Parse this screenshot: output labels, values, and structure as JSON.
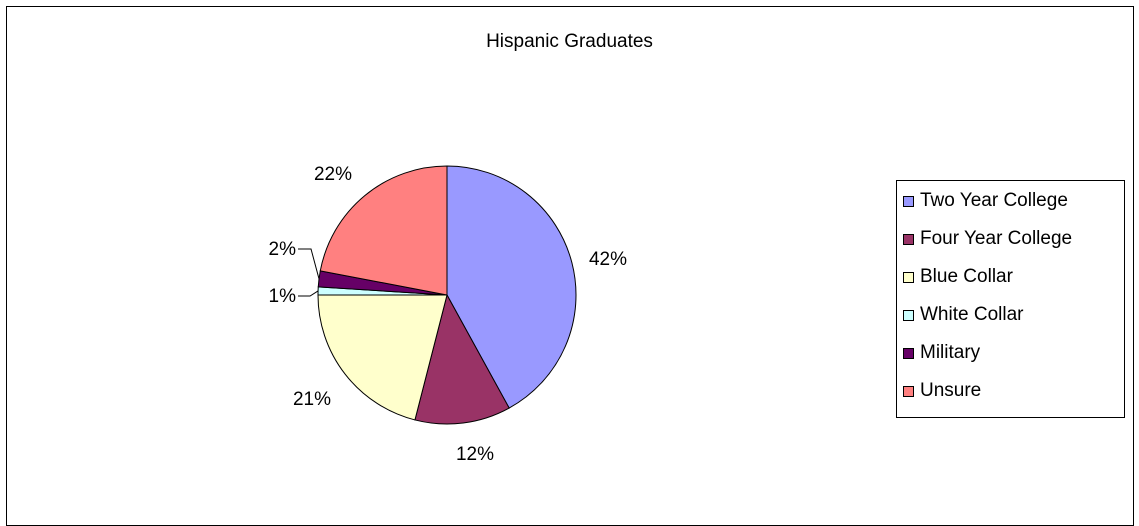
{
  "chart_data": {
    "type": "pie",
    "title": "Hispanic Graduates",
    "categories": [
      "Two Year College",
      "Four Year College",
      "Blue Collar",
      "White Collar",
      "Military",
      "Unsure"
    ],
    "values": [
      42,
      12,
      21,
      1,
      2,
      22
    ],
    "labels": [
      "42%",
      "12%",
      "21%",
      "1%",
      "2%",
      "22%"
    ],
    "colors": [
      "#9999ff",
      "#993366",
      "#ffffcc",
      "#ccffff",
      "#660066",
      "#ff8080"
    ],
    "legend_position": "right"
  }
}
